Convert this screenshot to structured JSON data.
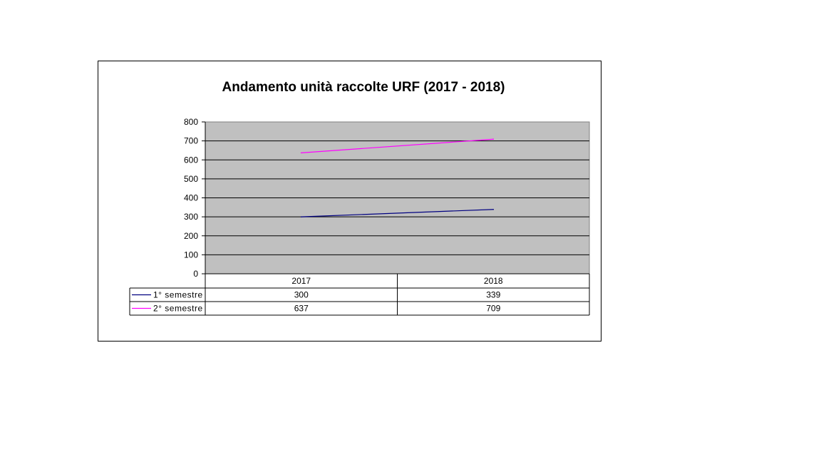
{
  "chart_data": {
    "type": "line",
    "title": "Andamento unità raccolte URF (2017 - 2018)",
    "categories": [
      "2017",
      "2018"
    ],
    "series": [
      {
        "name": "1° semestre",
        "values": [
          300,
          339
        ],
        "color": "#000080"
      },
      {
        "name": "2° semestre",
        "values": [
          637,
          709
        ],
        "color": "#ff00ff"
      }
    ],
    "ylim": [
      0,
      800
    ],
    "yticks": [
      "0",
      "100",
      "200",
      "300",
      "400",
      "500",
      "600",
      "700",
      "800"
    ],
    "plot_background": "#c0c0c0",
    "grid": true,
    "data_table": true,
    "legend": "data-table-left"
  }
}
